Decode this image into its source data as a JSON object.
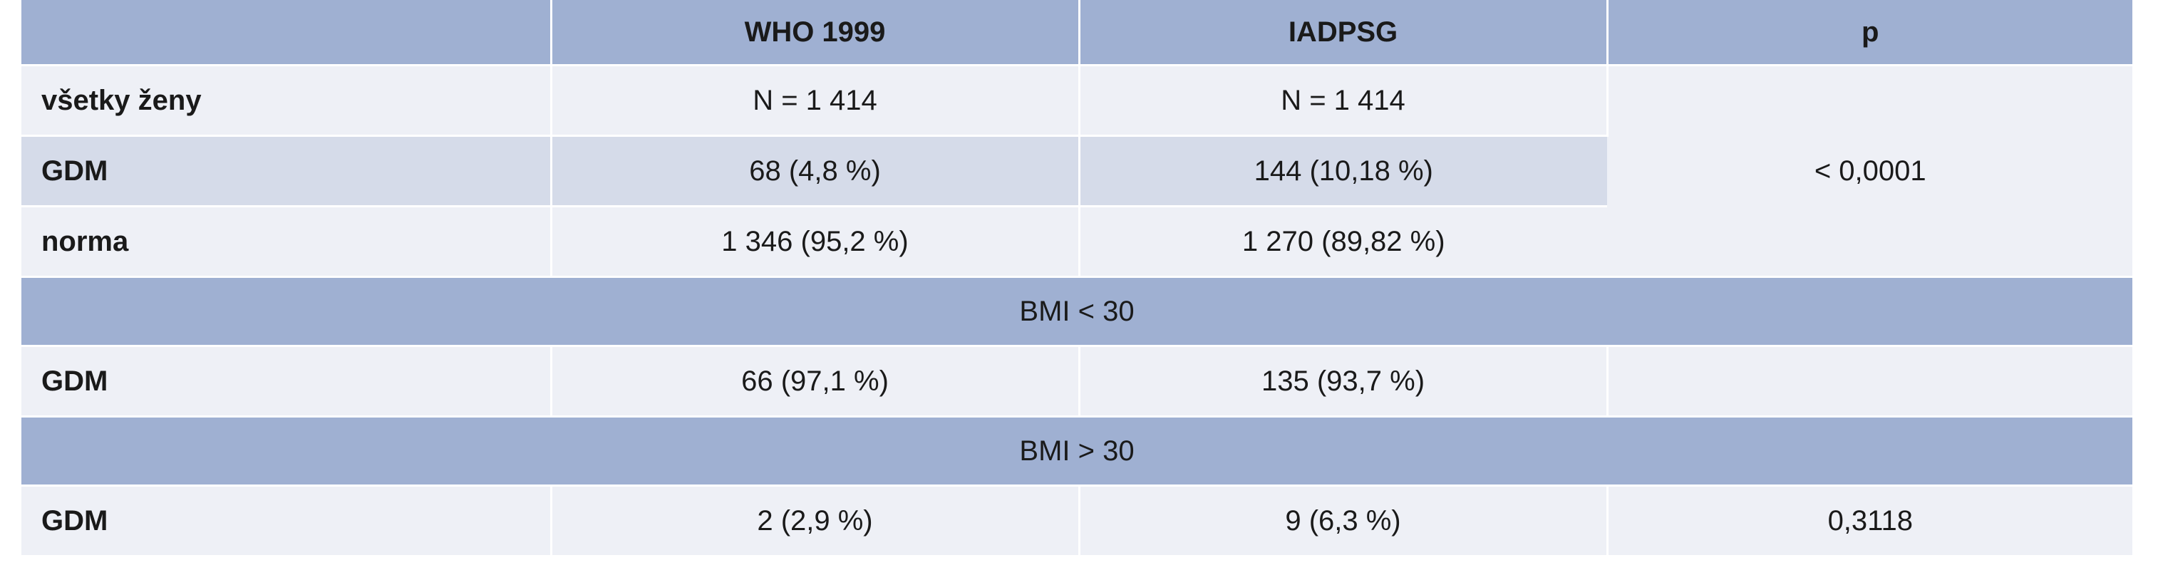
{
  "header": {
    "col0": "",
    "col1": "WHO 1999",
    "col2": "IADPSG",
    "col3": "p"
  },
  "rows_group1": [
    {
      "label": "všetky ženy",
      "who": "N = 1 414",
      "iadpsg": "N = 1 414"
    },
    {
      "label": "GDM",
      "who": "68 (4,8 %)",
      "iadpsg": "144 (10,18 %)"
    },
    {
      "label": "norma",
      "who": "1 346 (95,2 %)",
      "iadpsg": "1 270 (89,82 %)"
    }
  ],
  "group1_p": "< 0,0001",
  "section_bmi_lt30": "BMI < 30",
  "row_bmi_lt30": {
    "label": "GDM",
    "who": "66 (97,1 %)",
    "iadpsg": "135 (93,7 %)",
    "p": ""
  },
  "section_bmi_gt30": "BMI > 30",
  "row_bmi_gt30": {
    "label": "GDM",
    "who": "2 (2,9 %)",
    "iadpsg": "9 (6,3 %)",
    "p": "0,3118"
  },
  "colors": {
    "header_bg": "#9fb0d2",
    "row_dark": "#d5dbe9",
    "row_light": "#eef0f6"
  }
}
